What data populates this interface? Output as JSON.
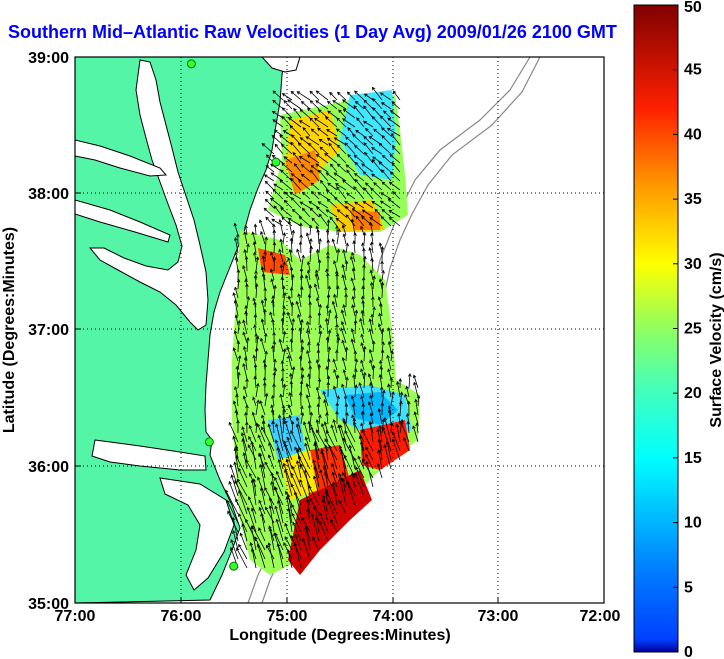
{
  "title": "Southern Mid–Atlantic Raw Velocities (1 Day Avg) 2009/01/26 2100 GMT",
  "map": {
    "x_label": "Longitude (Degrees:Minutes)",
    "y_label": "Latitude (Degrees:Minutes)",
    "x_ticks": [
      "77:00",
      "76:00",
      "75:00",
      "74:00",
      "73:00",
      "72:00"
    ],
    "y_ticks": [
      "39:00",
      "38:00",
      "37:00",
      "36:00",
      "35:00"
    ],
    "lon_range": [
      -77,
      -72
    ],
    "lat_range": [
      35,
      39
    ],
    "land_color": "#55f5a8",
    "water_color": "#ffffff",
    "grid": "dotted"
  },
  "colorbar": {
    "label": "Surface Velocity (cm/s)",
    "ticks": [
      "0",
      "5",
      "10",
      "15",
      "20",
      "25",
      "30",
      "35",
      "40",
      "45",
      "50"
    ],
    "range": [
      0,
      50
    ],
    "colormap": "jet"
  },
  "stations": [
    {
      "lon": -75.9,
      "lat": 38.95
    },
    {
      "lon": -75.1,
      "lat": 38.23
    },
    {
      "lon": -75.73,
      "lat": 36.18
    },
    {
      "lon": -75.5,
      "lat": 35.27
    }
  ]
}
